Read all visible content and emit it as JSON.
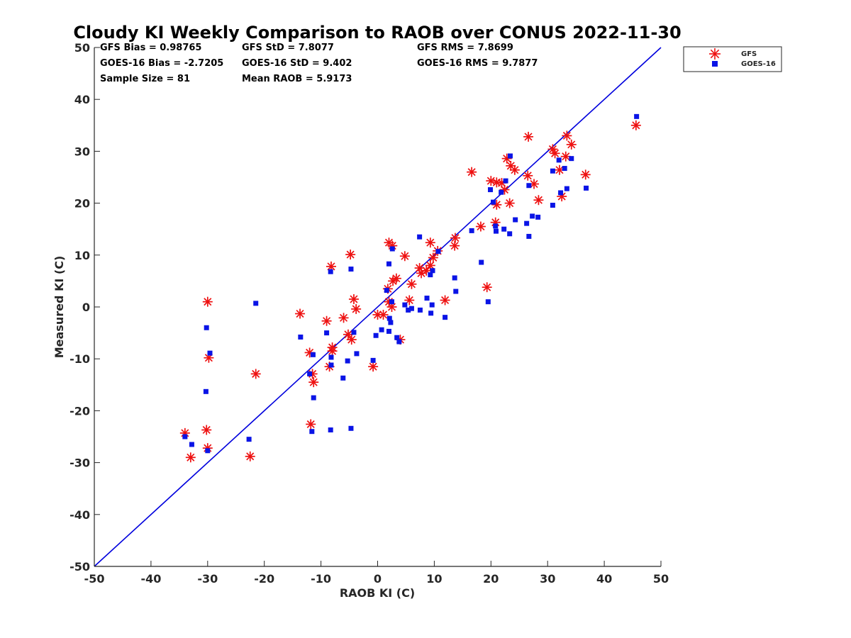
{
  "chart_data": {
    "type": "scatter",
    "title": "Cloudy KI Weekly Comparison to RAOB over CONUS 2022-11-30",
    "xlabel": "RAOB KI (C)",
    "ylabel": "Measured KI (C)",
    "xlim": [
      -50,
      50
    ],
    "ylim": [
      -50,
      50
    ],
    "xticks": [
      -50,
      -40,
      -30,
      -20,
      -10,
      0,
      10,
      20,
      30,
      40,
      50
    ],
    "yticks": [
      -50,
      -40,
      -30,
      -20,
      -10,
      0,
      10,
      20,
      30,
      40,
      50
    ],
    "grid": false,
    "legend_position": "top-right, outside plot",
    "stats": [
      "GFS Bias = 0.98765",
      "GFS StD = 7.8077",
      "GFS RMS = 7.8699",
      "GOES-16 Bias = -2.7205",
      "GOES-16 StD = 9.402",
      "GOES-16 RMS = 9.7877",
      "Sample Size = 81",
      "Mean RAOB = 5.9173"
    ],
    "reference_line": {
      "x": [
        -50,
        50
      ],
      "y": [
        -50,
        50
      ],
      "color": "#0000dd"
    },
    "series": [
      {
        "name": "GFS",
        "marker": "asterisk",
        "color": "#ee1111",
        "points": [
          [
            -34,
            -24.3
          ],
          [
            -33,
            -29
          ],
          [
            -30.2,
            -23.7
          ],
          [
            -30,
            -27.2
          ],
          [
            -30,
            1
          ],
          [
            -29.8,
            -9.8
          ],
          [
            -22.5,
            -28.8
          ],
          [
            -21.5,
            -12.9
          ],
          [
            -13.7,
            -1.3
          ],
          [
            -12,
            -8.8
          ],
          [
            -11.8,
            -22.6
          ],
          [
            -11.5,
            -12.9
          ],
          [
            -11.3,
            -14.5
          ],
          [
            -9,
            -2.7
          ],
          [
            -8.5,
            -11.5
          ],
          [
            -8.2,
            7.8
          ],
          [
            -8,
            -8.5
          ],
          [
            -8,
            -7.8
          ],
          [
            -6,
            -2.1
          ],
          [
            -5.2,
            -5.3
          ],
          [
            -4.8,
            10.1
          ],
          [
            -4.6,
            -6.3
          ],
          [
            -4.2,
            1.5
          ],
          [
            -3.8,
            -0.4
          ],
          [
            -0.8,
            -11.5
          ],
          [
            0,
            -1.5
          ],
          [
            1,
            -1.5
          ],
          [
            1.8,
            3.5
          ],
          [
            2,
            12.4
          ],
          [
            2,
            1
          ],
          [
            2.5,
            0
          ],
          [
            2.6,
            11.8
          ],
          [
            2.7,
            5
          ],
          [
            3.3,
            5.5
          ],
          [
            4,
            -6.3
          ],
          [
            4.8,
            9.8
          ],
          [
            5.6,
            1.3
          ],
          [
            6,
            4.4
          ],
          [
            7.4,
            7.5
          ],
          [
            7.7,
            6.5
          ],
          [
            8.6,
            7
          ],
          [
            9.3,
            8
          ],
          [
            9.3,
            12.4
          ],
          [
            9.8,
            9.5
          ],
          [
            10.6,
            10.8
          ],
          [
            11.9,
            1.3
          ],
          [
            13.6,
            11.8
          ],
          [
            13.7,
            13.3
          ],
          [
            16.6,
            26
          ],
          [
            18.2,
            15.5
          ],
          [
            19.3,
            3.8
          ],
          [
            20,
            24.3
          ],
          [
            20.8,
            16.3
          ],
          [
            21,
            19.7
          ],
          [
            21,
            24
          ],
          [
            21.9,
            23.9
          ],
          [
            22.4,
            22.6
          ],
          [
            22.8,
            28.6
          ],
          [
            23.3,
            20
          ],
          [
            23.5,
            27.2
          ],
          [
            24.2,
            26.4
          ],
          [
            26.5,
            25.3
          ],
          [
            26.6,
            32.8
          ],
          [
            27.6,
            23.7
          ],
          [
            28.4,
            20.6
          ],
          [
            30.9,
            30.4
          ],
          [
            31.3,
            29.6
          ],
          [
            32.1,
            26.4
          ],
          [
            32.5,
            21.3
          ],
          [
            33.2,
            29
          ],
          [
            33.4,
            33
          ],
          [
            34.2,
            31.3
          ],
          [
            36.7,
            25.5
          ],
          [
            45.6,
            35
          ]
        ]
      },
      {
        "name": "GOES-16",
        "marker": "square",
        "color": "#0a14e6",
        "points": [
          [
            -34,
            -25
          ],
          [
            -32.8,
            -26.5
          ],
          [
            -30.3,
            -16.3
          ],
          [
            -30.2,
            -4
          ],
          [
            -30,
            -27.7
          ],
          [
            -29.6,
            -8.9
          ],
          [
            -22.7,
            -25.5
          ],
          [
            -21.5,
            0.7
          ],
          [
            -13.6,
            -5.8
          ],
          [
            -12,
            -12.9
          ],
          [
            -11.6,
            -24
          ],
          [
            -11.4,
            -9.2
          ],
          [
            -11.3,
            -17.5
          ],
          [
            -9,
            -5
          ],
          [
            -8.3,
            6.8
          ],
          [
            -8.3,
            -23.7
          ],
          [
            -8.2,
            -9.7
          ],
          [
            -8.2,
            -11.2
          ],
          [
            -6.1,
            -13.7
          ],
          [
            -5.3,
            -10.4
          ],
          [
            -4.7,
            7.3
          ],
          [
            -4.7,
            -23.4
          ],
          [
            -4.2,
            -4.9
          ],
          [
            -3.7,
            -9
          ],
          [
            -0.8,
            -10.3
          ],
          [
            -0.3,
            -5.5
          ],
          [
            0.7,
            -4.4
          ],
          [
            1.6,
            3.2
          ],
          [
            2,
            -4.7
          ],
          [
            2,
            8.3
          ],
          [
            2.1,
            -2.2
          ],
          [
            2.3,
            -3
          ],
          [
            2.5,
            1
          ],
          [
            2.6,
            11.2
          ],
          [
            3.4,
            -5.9
          ],
          [
            3.8,
            -6.7
          ],
          [
            4.8,
            0.4
          ],
          [
            5.4,
            -0.6
          ],
          [
            6,
            -0.3
          ],
          [
            7.4,
            13.5
          ],
          [
            7.5,
            -0.6
          ],
          [
            8.7,
            1.7
          ],
          [
            9.3,
            6.2
          ],
          [
            9.4,
            -1.2
          ],
          [
            9.6,
            0.4
          ],
          [
            9.7,
            7
          ],
          [
            10.7,
            10.7
          ],
          [
            11.9,
            -2
          ],
          [
            13.6,
            5.6
          ],
          [
            13.8,
            3
          ],
          [
            16.6,
            14.7
          ],
          [
            18.3,
            8.6
          ],
          [
            19.5,
            1
          ],
          [
            19.9,
            22.6
          ],
          [
            20.4,
            20.2
          ],
          [
            20.8,
            15.6
          ],
          [
            20.9,
            14.6
          ],
          [
            21.8,
            22.1
          ],
          [
            22.3,
            15
          ],
          [
            22.6,
            24.3
          ],
          [
            23.3,
            14.1
          ],
          [
            23.4,
            29.1
          ],
          [
            24.3,
            16.8
          ],
          [
            26.3,
            16.1
          ],
          [
            26.7,
            13.6
          ],
          [
            26.7,
            23.4
          ],
          [
            27.3,
            17.5
          ],
          [
            28.3,
            17.3
          ],
          [
            30.9,
            26.2
          ],
          [
            30.9,
            19.6
          ],
          [
            32,
            28.3
          ],
          [
            32.3,
            22
          ],
          [
            33,
            26.7
          ],
          [
            33.4,
            22.8
          ],
          [
            34.2,
            28.6
          ],
          [
            36.8,
            22.9
          ],
          [
            45.7,
            36.7
          ]
        ]
      }
    ]
  }
}
